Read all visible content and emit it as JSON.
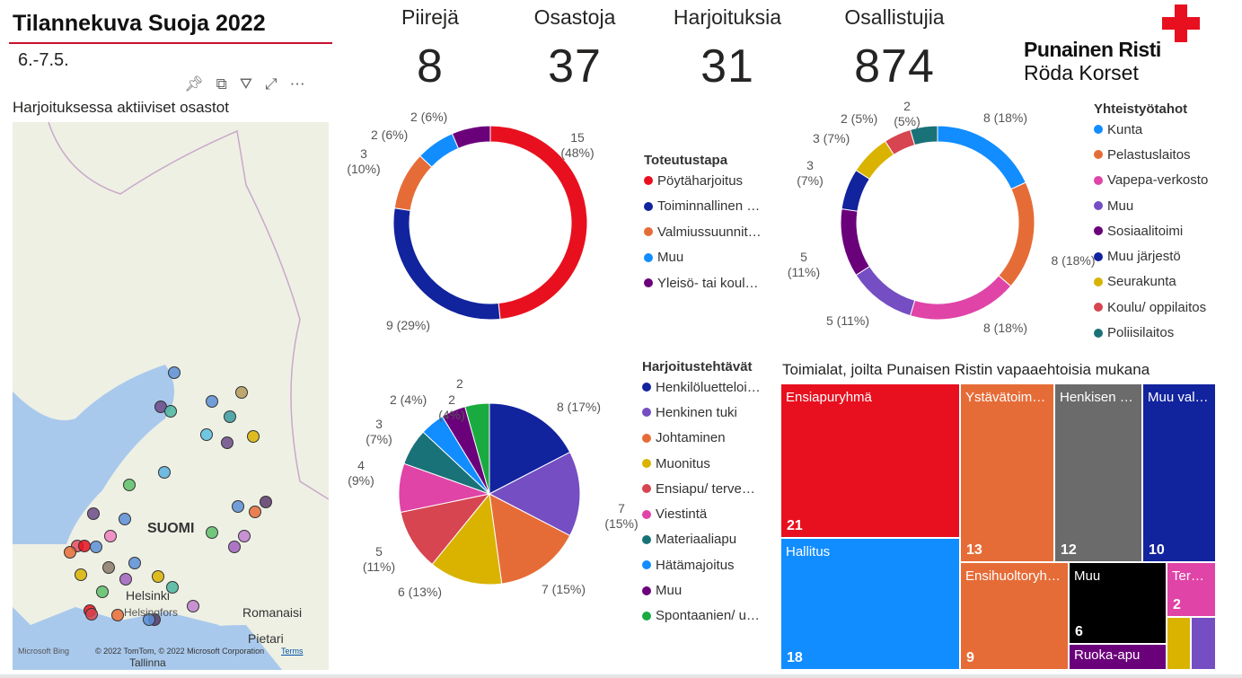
{
  "header": {
    "title": "Tilannekuva Suoja 2022",
    "date": "6.-7.5."
  },
  "toolbar": {
    "icons": [
      "pin-icon",
      "copy-icon",
      "filter-icon",
      "focus-mode-icon",
      "more-options-icon"
    ],
    "more": "⋯"
  },
  "map": {
    "title": "Harjoituksessa aktiiviset osastot",
    "labels": {
      "country": "SUOMI",
      "helsinki": "Helsinki",
      "helsingfors": "Helsingfors",
      "romanaisi": "Romanaisi",
      "pietari": "Pietari",
      "tallinna": "Tallinna"
    },
    "bing": "Microsoft Bing",
    "copyright": "© 2022 TomTom, © 2022 Microsoft Corporation",
    "terms": "Terms"
  },
  "kpis": [
    {
      "label": "Piirejä",
      "value": "8"
    },
    {
      "label": "Osastoja",
      "value": "37"
    },
    {
      "label": "Harjoituksia",
      "value": "31"
    },
    {
      "label": "Osallistujia",
      "value": "874"
    }
  ],
  "logo": {
    "line1": "Punainen Risti",
    "line2": "Röda Korset",
    "color": "#E8101F"
  },
  "toteutustapa": {
    "title": "Toteutustapa",
    "items": [
      {
        "label": "Pöytäharjoitus",
        "value": 15,
        "pct": "15 (48%)",
        "color": "#E8101F"
      },
      {
        "label": "Toiminnallinen …",
        "value": 9,
        "pct": "9 (29%)",
        "color": "#12239E"
      },
      {
        "label": "Valmiussuunnit…",
        "value": 3,
        "pct": "3 (10%)",
        "color": "#E66C37"
      },
      {
        "label": "Muu",
        "value": 2,
        "pct": "2 (6%)",
        "color": "#118DFF"
      },
      {
        "label": "Yleisö- tai koul…",
        "value": 2,
        "pct": "2 (6%)",
        "color": "#6B007B"
      }
    ]
  },
  "yhteistyotahot": {
    "title": "Yhteistyötahot",
    "items": [
      {
        "label": "Kunta",
        "value": 8,
        "pct": "8 (18%)",
        "color": "#118DFF"
      },
      {
        "label": "Pelastuslaitos",
        "value": 8,
        "pct": "8 (18%)",
        "color": "#E66C37"
      },
      {
        "label": "Vapepa-verkosto",
        "value": 8,
        "pct": "8 (18%)",
        "color": "#E044A7"
      },
      {
        "label": "Muu",
        "value": 5,
        "pct": "5 (11%)",
        "color": "#744EC2"
      },
      {
        "label": "Sosiaalitoimi",
        "value": 5,
        "pct": "5 (11%)",
        "color": "#6B007B"
      },
      {
        "label": "Muu järjestö",
        "value": 3,
        "pct": "3 (7%)",
        "color": "#12239E"
      },
      {
        "label": "Seurakunta",
        "value": 3,
        "pct": "3 (7%)",
        "color": "#D9B300"
      },
      {
        "label": "Koulu/ oppilaitos",
        "value": 2,
        "pct": "2 (5%)",
        "color": "#D64550"
      },
      {
        "label": "Poliisilaitos",
        "value": 2,
        "pct": "2 (5%)",
        "color": "#197278"
      }
    ]
  },
  "harjoitustehtavat": {
    "title": "Harjoitustehtävät",
    "items": [
      {
        "label": "Henkilöluetteloi…",
        "value": 8,
        "pct": "8 (17%)",
        "color": "#12239E"
      },
      {
        "label": "Henkinen tuki",
        "value": 7,
        "pct": "7 (15%)",
        "color": "#744EC2"
      },
      {
        "label": "Johtaminen",
        "value": 7,
        "pct": "7 (15%)",
        "color": "#E66C37"
      },
      {
        "label": "Muonitus",
        "value": 6,
        "pct": "6 (13%)",
        "color": "#D9B300"
      },
      {
        "label": "Ensiapu/ terve…",
        "value": 5,
        "pct": "5 (11%)",
        "color": "#D64550"
      },
      {
        "label": "Viestintä",
        "value": 4,
        "pct": "4 (9%)",
        "color": "#E044A7"
      },
      {
        "label": "Materiaaliapu",
        "value": 3,
        "pct": "3 (7%)",
        "color": "#197278"
      },
      {
        "label": "Hätämajoitus",
        "value": 2,
        "pct": "2 (4%)",
        "color": "#118DFF"
      },
      {
        "label": "Muu",
        "value": 2,
        "pct": "2 (4%)",
        "color": "#6B007B"
      },
      {
        "label": "Spontaanien/ u…",
        "value": 2,
        "pct": "2",
        "color": "#1AAB40"
      }
    ]
  },
  "treemap": {
    "title": "Toimialat, joilta Punaisen Ristin vapaaehtoisia mukana",
    "items": [
      {
        "label": "Ensiapuryhmä",
        "value": "21",
        "color": "#E8101F"
      },
      {
        "label": "Hallitus",
        "value": "18",
        "color": "#118DFF"
      },
      {
        "label": "Ystävätoim…",
        "value": "13",
        "color": "#E66C37"
      },
      {
        "label": "Henkisen …",
        "value": "12",
        "color": "#6B6B6B"
      },
      {
        "label": "Muu val…",
        "value": "10",
        "color": "#12239E"
      },
      {
        "label": "Ensihuoltoryh…",
        "value": "9",
        "color": "#E66C37"
      },
      {
        "label": "Muu",
        "value": "6",
        "color": "#000000"
      },
      {
        "label": "Ruoka-apu",
        "value": "",
        "color": "#6B007B"
      },
      {
        "label": "Ter…",
        "value": "2",
        "color": "#E044A7"
      },
      {
        "label": "",
        "value": "",
        "color": "#D9B300"
      },
      {
        "label": "",
        "value": "",
        "color": "#744EC2"
      }
    ]
  }
}
